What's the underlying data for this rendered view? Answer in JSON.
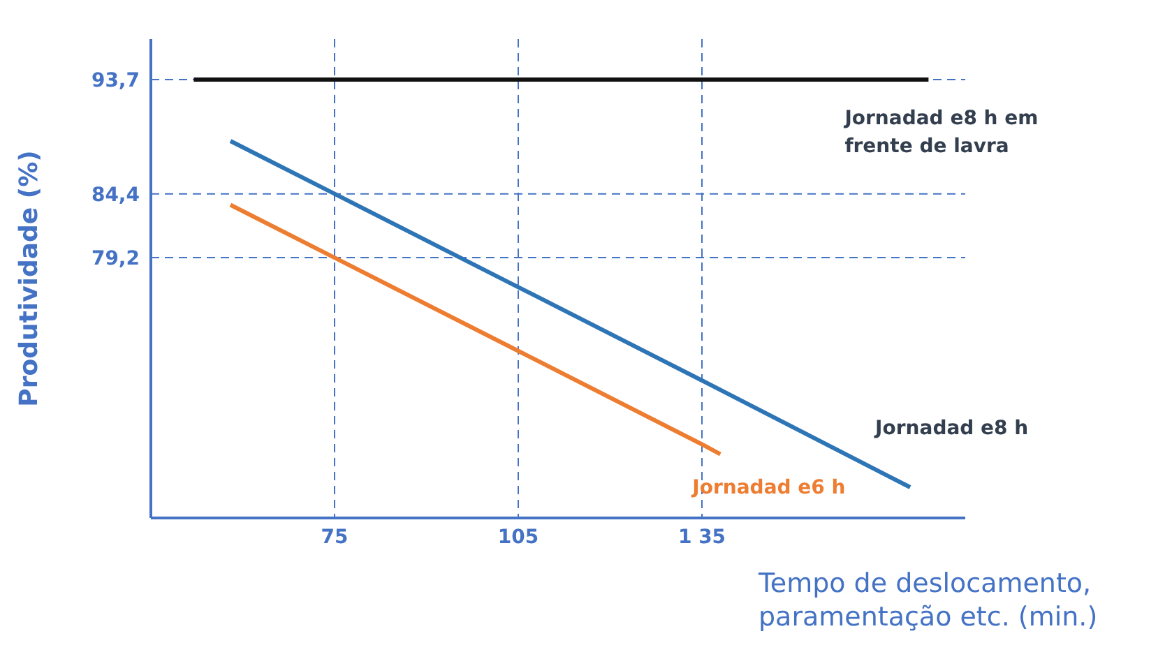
{
  "chart_data": {
    "type": "line",
    "xlabel": "Tempo de deslocamento, paramentação etc. (min.)",
    "ylabel": "Produtividade (%)",
    "xlim": [
      45,
      178
    ],
    "xticks": [
      75,
      105,
      {
        "value": 135,
        "label": "1 35"
      }
    ],
    "ylim": [
      58,
      97
    ],
    "yticks": [
      {
        "value": 93.7,
        "label": "93,7"
      },
      {
        "value": 84.4,
        "label": "84,4"
      },
      {
        "value": 79.2,
        "label": "79,2"
      }
    ],
    "grid": true,
    "line_style": "solid",
    "marker": "none",
    "series": [
      {
        "name": "Jornadad e8  h em frente de lavra",
        "color": "#111111",
        "x": [
          52,
          172
        ],
        "values": [
          93.7,
          93.7
        ]
      },
      {
        "name": "Jornadad e8  h",
        "color": "#2e75b6",
        "x": [
          58,
          75,
          105,
          135,
          169
        ],
        "values": [
          88.7,
          84.4,
          76.8,
          69.2,
          60.5
        ]
      },
      {
        "name": "Jornadad e6  h",
        "color": "#ed7d31",
        "x": [
          58,
          75,
          105,
          135,
          138
        ],
        "values": [
          83.5,
          79.2,
          71.6,
          64.0,
          63.2
        ]
      }
    ]
  }
}
